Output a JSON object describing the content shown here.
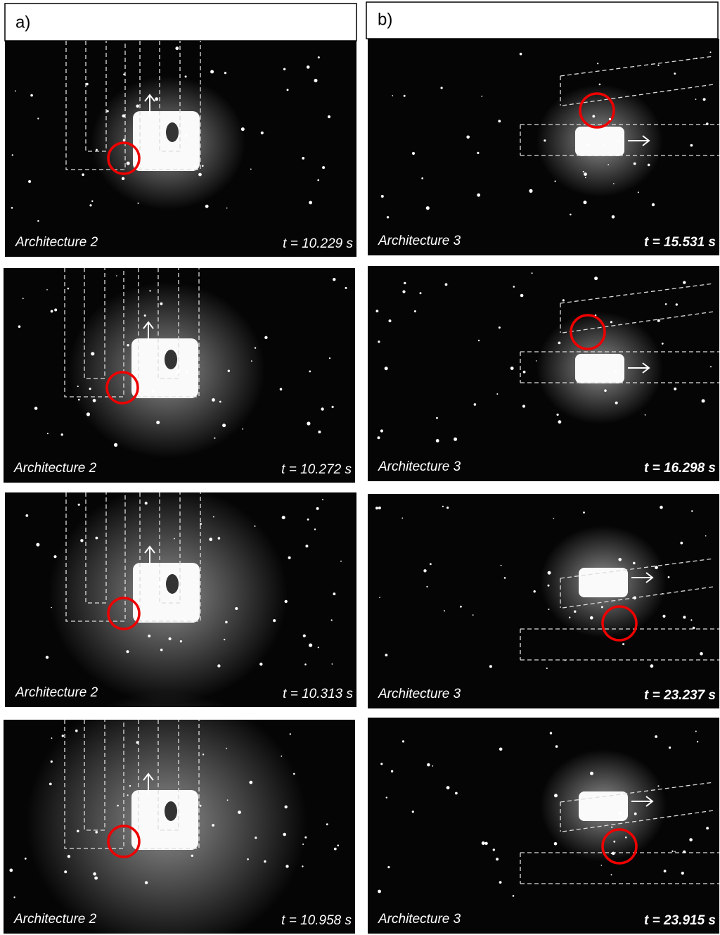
{
  "columns": [
    {
      "label": "a)",
      "panels": [
        {
          "caption": "Architecture 2",
          "time": "t = 10.229 s"
        },
        {
          "caption": "Architecture 2",
          "time": "t = 10.272 s"
        },
        {
          "caption": "Architecture 2",
          "time": "t = 10.313 s"
        },
        {
          "caption": "Architecture 2",
          "time": "t = 10.958 s"
        }
      ]
    },
    {
      "label": "b)",
      "panels": [
        {
          "caption": "Architecture 3",
          "time": "t = 15.531 s"
        },
        {
          "caption": "Architecture 3",
          "time": "t = 16.298 s"
        },
        {
          "caption": "Architecture 3",
          "time": "t = 23.237 s"
        },
        {
          "caption": "Architecture 3",
          "time": "t = 23.915 s"
        }
      ]
    }
  ]
}
